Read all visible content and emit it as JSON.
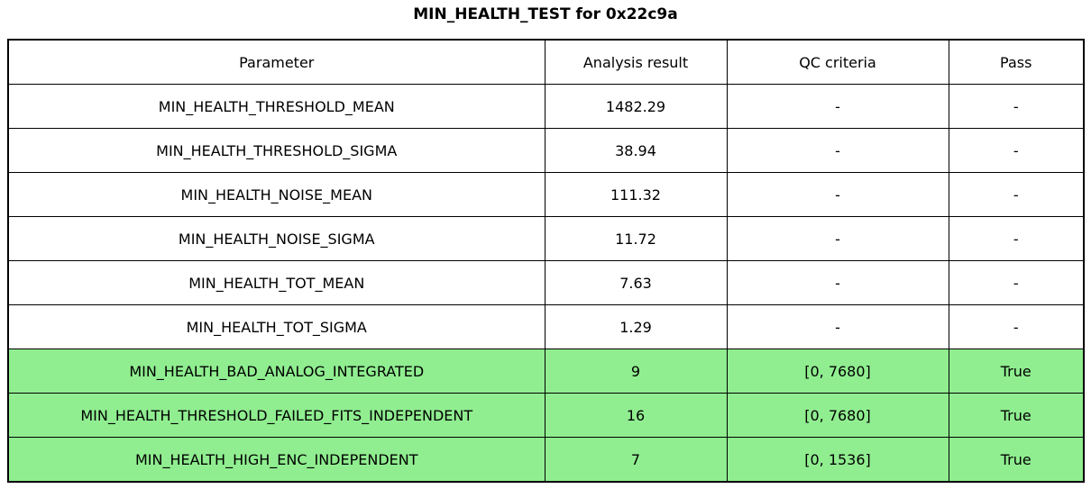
{
  "title": "MIN_HEALTH_TEST for 0x22c9a",
  "colors": {
    "pass_row_green": "#90ee90",
    "default_row": "#ffffff",
    "border": "#000000"
  },
  "table": {
    "columns": [
      "Parameter",
      "Analysis result",
      "QC criteria",
      "Pass"
    ],
    "rows": [
      {
        "parameter": "MIN_HEALTH_THRESHOLD_MEAN",
        "result": "1482.29",
        "qc": "-",
        "pass": "-",
        "highlight": false
      },
      {
        "parameter": "MIN_HEALTH_THRESHOLD_SIGMA",
        "result": "38.94",
        "qc": "-",
        "pass": "-",
        "highlight": false
      },
      {
        "parameter": "MIN_HEALTH_NOISE_MEAN",
        "result": "111.32",
        "qc": "-",
        "pass": "-",
        "highlight": false
      },
      {
        "parameter": "MIN_HEALTH_NOISE_SIGMA",
        "result": "11.72",
        "qc": "-",
        "pass": "-",
        "highlight": false
      },
      {
        "parameter": "MIN_HEALTH_TOT_MEAN",
        "result": "7.63",
        "qc": "-",
        "pass": "-",
        "highlight": false
      },
      {
        "parameter": "MIN_HEALTH_TOT_SIGMA",
        "result": "1.29",
        "qc": "-",
        "pass": "-",
        "highlight": false
      },
      {
        "parameter": "MIN_HEALTH_BAD_ANALOG_INTEGRATED",
        "result": "9",
        "qc": "[0, 7680]",
        "pass": "True",
        "highlight": true
      },
      {
        "parameter": "MIN_HEALTH_THRESHOLD_FAILED_FITS_INDEPENDENT",
        "result": "16",
        "qc": "[0, 7680]",
        "pass": "True",
        "highlight": true
      },
      {
        "parameter": "MIN_HEALTH_HIGH_ENC_INDEPENDENT",
        "result": "7",
        "qc": "[0, 1536]",
        "pass": "True",
        "highlight": true
      }
    ]
  }
}
